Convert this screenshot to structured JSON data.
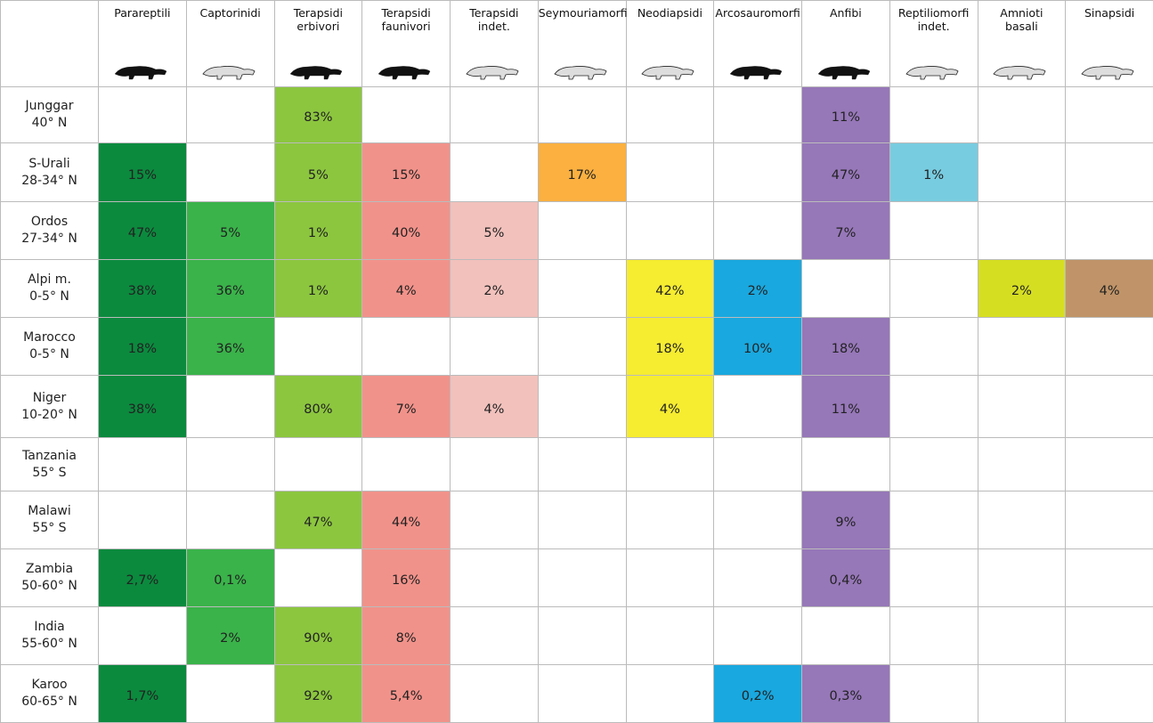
{
  "table": {
    "columns": [
      {
        "name": "Parareptili",
        "color": "#0b8a3e"
      },
      {
        "name": "Captorinidi",
        "color": "#3ab34a"
      },
      {
        "name": "Terapsidi\nerbivori",
        "color": "#8cc63f"
      },
      {
        "name": "Terapsidi\nfaunivori",
        "color": "#f1928a"
      },
      {
        "name": "Terapsidi\nindet.",
        "color": "#f2c1bc"
      },
      {
        "name": "Seymouriamorfi",
        "color": "#fbb040"
      },
      {
        "name": "Neodiapsidi",
        "color": "#f6ec30"
      },
      {
        "name": "Arcosauromorfi",
        "color": "#19a8df"
      },
      {
        "name": "Anfibi",
        "color": "#9677b8"
      },
      {
        "name": "Reptiliomorfi\nindet.",
        "color": "#78cce0"
      },
      {
        "name": "Amnioti\nbasali",
        "color": "#d6de22"
      },
      {
        "name": "Sinapsidi",
        "color": "#c09468"
      }
    ],
    "rows": [
      {
        "name": "Junggar",
        "lat": "40° N",
        "cells": [
          null,
          null,
          "83%",
          null,
          null,
          null,
          null,
          null,
          "11%",
          null,
          null,
          null
        ]
      },
      {
        "name": "S-Urali",
        "lat": "28-34° N",
        "cells": [
          "15%",
          null,
          "5%",
          "15%",
          null,
          "17%",
          null,
          null,
          "47%",
          "1%",
          null,
          null
        ]
      },
      {
        "name": "Ordos",
        "lat": "27-34° N",
        "cells": [
          "47%",
          "5%",
          "1%",
          "40%",
          "5%",
          null,
          null,
          null,
          "7%",
          null,
          null,
          null
        ]
      },
      {
        "name": "Alpi m.",
        "lat": "0-5° N",
        "cells": [
          "38%",
          "36%",
          "1%",
          "4%",
          "2%",
          null,
          "42%",
          "2%",
          null,
          null,
          "2%",
          "4%"
        ]
      },
      {
        "name": "Marocco",
        "lat": "0-5° N",
        "cells": [
          "18%",
          "36%",
          null,
          null,
          null,
          null,
          "18%",
          "10%",
          "18%",
          null,
          null,
          null
        ]
      },
      {
        "name": "Niger",
        "lat": "10-20° N",
        "cells": [
          "38%",
          null,
          "80%",
          "7%",
          "4%",
          null,
          "4%",
          null,
          "11%",
          null,
          null,
          null
        ]
      },
      {
        "name": "Tanzania",
        "lat": "55° S",
        "cells": [
          null,
          null,
          null,
          null,
          null,
          null,
          null,
          null,
          null,
          null,
          null,
          null
        ]
      },
      {
        "name": "Malawi",
        "lat": "55° S",
        "cells": [
          null,
          null,
          "47%",
          "44%",
          null,
          null,
          null,
          null,
          "9%",
          null,
          null,
          null
        ]
      },
      {
        "name": "Zambia",
        "lat": "50-60° N",
        "cells": [
          "2,7%",
          "0,1%",
          null,
          "16%",
          null,
          null,
          null,
          null,
          "0,4%",
          null,
          null,
          null
        ]
      },
      {
        "name": "India",
        "lat": "55-60° N",
        "cells": [
          null,
          "2%",
          "90%",
          "8%",
          null,
          null,
          null,
          null,
          null,
          null,
          null,
          null
        ]
      },
      {
        "name": "Karoo",
        "lat": "60-65° N",
        "cells": [
          "1,7%",
          null,
          "92%",
          "5,4%",
          null,
          null,
          null,
          "0,2%",
          "0,3%",
          null,
          null,
          null
        ]
      }
    ]
  }
}
